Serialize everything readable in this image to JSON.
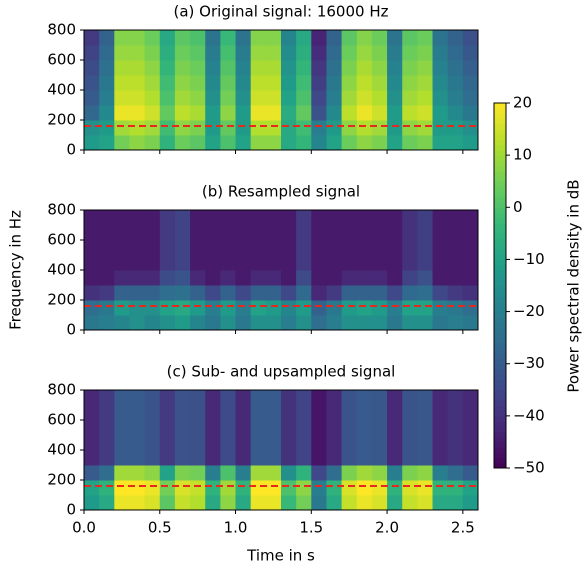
{
  "chart_data": [
    {
      "type": "heatmap",
      "title": "(a) Original signal: 16000 Hz",
      "colormap": "viridis",
      "xlim": [
        0,
        2.6
      ],
      "ylim": [
        0,
        800
      ],
      "yticks": [
        0,
        200,
        400,
        600,
        800
      ],
      "xticks": [
        {
          "value": 0,
          "label": "0.0"
        },
        0.5,
        {
          "value": 1,
          "label": "1.0"
        },
        1.5,
        {
          "value": 2,
          "label": "2.0"
        },
        2.5
      ],
      "show_xticklabels": false,
      "hline": 160,
      "hline_color": "#e8281e",
      "z": [
        [
          -12,
          -10,
          5,
          8,
          6,
          -5,
          4,
          2,
          -10,
          0,
          -10,
          8,
          8,
          -8,
          -4,
          -18,
          -10,
          4,
          8,
          6,
          -10,
          4,
          6,
          -10,
          -10,
          -12
        ],
        [
          -15,
          -12,
          10,
          12,
          10,
          -2,
          8,
          6,
          -12,
          3,
          -12,
          12,
          12,
          -8,
          -2,
          -20,
          -12,
          8,
          12,
          10,
          -12,
          8,
          10,
          -12,
          -12,
          -15
        ],
        [
          -27,
          -17,
          18,
          18,
          15,
          3,
          13,
          11,
          -12,
          8,
          -12,
          18,
          18,
          -7,
          3,
          -32,
          -17,
          13,
          18,
          15,
          -12,
          13,
          15,
          -12,
          -17,
          -22
        ],
        [
          -30,
          -20,
          15,
          15,
          12,
          0,
          10,
          8,
          -15,
          5,
          -15,
          15,
          15,
          -10,
          0,
          -35,
          -20,
          10,
          15,
          12,
          -15,
          10,
          12,
          -15,
          -20,
          -25
        ],
        [
          -32,
          -22,
          13,
          13,
          10,
          -2,
          8,
          6,
          -17,
          3,
          -17,
          13,
          13,
          -12,
          -2,
          -37,
          -22,
          8,
          13,
          10,
          -17,
          8,
          10,
          -17,
          -22,
          -27
        ],
        [
          -34,
          -24,
          11,
          11,
          8,
          -4,
          6,
          4,
          -19,
          1,
          -19,
          11,
          11,
          -14,
          -4,
          -39,
          -24,
          6,
          11,
          8,
          -19,
          6,
          8,
          -19,
          -24,
          -29
        ],
        [
          -36,
          -26,
          9,
          9,
          6,
          -6,
          4,
          2,
          -21,
          -1,
          -21,
          9,
          9,
          -16,
          -6,
          -41,
          -26,
          4,
          9,
          6,
          -21,
          4,
          6,
          -21,
          -26,
          -31
        ],
        [
          -38,
          -28,
          7,
          7,
          4,
          -8,
          2,
          0,
          -23,
          -3,
          -23,
          7,
          7,
          -18,
          -8,
          -43,
          -28,
          2,
          7,
          4,
          -23,
          2,
          4,
          -23,
          -28,
          -33
        ]
      ]
    },
    {
      "type": "heatmap",
      "title": "(b) Resampled signal",
      "colormap": "viridis",
      "xlim": [
        0,
        2.6
      ],
      "ylim": [
        0,
        800
      ],
      "yticks": [
        0,
        200,
        400,
        600,
        800
      ],
      "xticks": [
        {
          "value": 0,
          "label": "0.0"
        },
        0.5,
        {
          "value": 1,
          "label": "1.0"
        },
        1.5,
        {
          "value": 2,
          "label": "2.0"
        },
        2.5
      ],
      "show_xticklabels": false,
      "hline": 160,
      "hline_color": "#e8281e",
      "z": [
        [
          -22,
          -20,
          -18,
          -15,
          -18,
          -15,
          -12,
          -18,
          -22,
          -15,
          -22,
          -15,
          -15,
          -20,
          -15,
          -25,
          -20,
          -15,
          -15,
          -15,
          -22,
          -15,
          -15,
          -22,
          -20,
          -22
        ],
        [
          -25,
          -22,
          -12,
          -15,
          -15,
          -10,
          -8,
          -12,
          -20,
          -12,
          -20,
          -10,
          -12,
          -18,
          -12,
          -28,
          -22,
          -12,
          -10,
          -12,
          -20,
          -10,
          -10,
          -20,
          -22,
          -25
        ],
        [
          -40,
          -38,
          -28,
          -28,
          -28,
          -25,
          -24,
          -28,
          -35,
          -28,
          -35,
          -28,
          -28,
          -35,
          -26,
          -42,
          -38,
          -28,
          -28,
          -28,
          -35,
          -26,
          -25,
          -35,
          -38,
          -40
        ],
        [
          -45,
          -45,
          -42,
          -42,
          -42,
          -34,
          -32,
          -42,
          -45,
          -42,
          -45,
          -42,
          -42,
          -45,
          -34,
          -45,
          -45,
          -42,
          -42,
          -42,
          -45,
          -36,
          -33,
          -45,
          -45,
          -45
        ],
        [
          -45,
          -45,
          -45,
          -45,
          -45,
          -38,
          -36,
          -45,
          -45,
          -45,
          -45,
          -45,
          -45,
          -45,
          -38,
          -45,
          -45,
          -45,
          -45,
          -45,
          -45,
          -40,
          -37,
          -45,
          -45,
          -45
        ],
        [
          -45,
          -45,
          -45,
          -45,
          -45,
          -38,
          -36,
          -45,
          -45,
          -45,
          -45,
          -45,
          -45,
          -45,
          -38,
          -45,
          -45,
          -45,
          -45,
          -45,
          -45,
          -40,
          -37,
          -45,
          -45,
          -45
        ],
        [
          -45,
          -45,
          -45,
          -45,
          -45,
          -38,
          -36,
          -45,
          -45,
          -45,
          -45,
          -45,
          -45,
          -45,
          -38,
          -45,
          -45,
          -45,
          -45,
          -45,
          -45,
          -40,
          -37,
          -45,
          -45,
          -45
        ],
        [
          -45,
          -45,
          -45,
          -45,
          -45,
          -38,
          -36,
          -45,
          -45,
          -45,
          -45,
          -45,
          -45,
          -45,
          -38,
          -45,
          -45,
          -45,
          -45,
          -45,
          -45,
          -40,
          -37,
          -45,
          -45,
          -45
        ]
      ]
    },
    {
      "type": "heatmap",
      "title": "(c) Sub- and upsampled signal",
      "colormap": "viridis",
      "xlim": [
        0,
        2.6
      ],
      "ylim": [
        0,
        800
      ],
      "yticks": [
        0,
        200,
        400,
        600,
        800
      ],
      "xticks": [
        {
          "value": 0,
          "label": "0.0"
        },
        0.5,
        {
          "value": 1,
          "label": "1.0"
        },
        1.5,
        {
          "value": 2,
          "label": "2.0"
        },
        2.5
      ],
      "show_xticklabels": true,
      "hline": 160,
      "hline_color": "#e8281e",
      "z": [
        [
          -12,
          -8,
          18,
          18,
          16,
          2,
          14,
          12,
          -8,
          8,
          -8,
          18,
          18,
          -3,
          5,
          -22,
          -8,
          14,
          18,
          16,
          -8,
          14,
          16,
          -8,
          -8,
          -12
        ],
        [
          -10,
          -5,
          20,
          20,
          18,
          5,
          16,
          14,
          -5,
          10,
          -5,
          20,
          20,
          0,
          8,
          -20,
          -5,
          16,
          20,
          18,
          -5,
          16,
          18,
          -5,
          -5,
          -10
        ],
        [
          -30,
          -25,
          10,
          10,
          8,
          -10,
          6,
          5,
          -20,
          0,
          -20,
          10,
          10,
          -15,
          -5,
          -35,
          -25,
          6,
          10,
          8,
          -20,
          6,
          8,
          -20,
          -25,
          -30
        ],
        [
          -42,
          -38,
          -30,
          -30,
          -32,
          -38,
          -32,
          -33,
          -42,
          -34,
          -42,
          -30,
          -30,
          -40,
          -36,
          -46,
          -42,
          -32,
          -30,
          -31,
          -42,
          -32,
          -31,
          -42,
          -40,
          -42
        ],
        [
          -42,
          -38,
          -30,
          -30,
          -32,
          -38,
          -32,
          -33,
          -42,
          -34,
          -42,
          -30,
          -30,
          -40,
          -36,
          -46,
          -42,
          -32,
          -30,
          -31,
          -42,
          -32,
          -31,
          -42,
          -40,
          -42
        ],
        [
          -42,
          -38,
          -30,
          -30,
          -32,
          -38,
          -32,
          -33,
          -42,
          -34,
          -42,
          -30,
          -30,
          -40,
          -36,
          -46,
          -42,
          -32,
          -30,
          -31,
          -42,
          -32,
          -31,
          -42,
          -40,
          -42
        ],
        [
          -42,
          -38,
          -30,
          -30,
          -32,
          -38,
          -32,
          -33,
          -42,
          -34,
          -42,
          -30,
          -30,
          -40,
          -36,
          -46,
          -42,
          -32,
          -30,
          -31,
          -42,
          -32,
          -31,
          -42,
          -40,
          -42
        ],
        [
          -42,
          -38,
          -30,
          -30,
          -32,
          -38,
          -32,
          -33,
          -42,
          -34,
          -42,
          -30,
          -30,
          -40,
          -36,
          -46,
          -42,
          -32,
          -30,
          -31,
          -42,
          -32,
          -31,
          -42,
          -40,
          -42
        ]
      ]
    }
  ],
  "xlabel": "Time in s",
  "ylabel": "Frequency in Hz",
  "colorbar": {
    "label": "Power spectral density in dB",
    "lim": [
      -50,
      20
    ],
    "ticks": [
      20,
      10,
      0,
      {
        "value": -10,
        "label": "−10"
      },
      {
        "value": -20,
        "label": "−20"
      },
      {
        "value": -30,
        "label": "−30"
      },
      {
        "value": -40,
        "label": "−40"
      },
      {
        "value": -50,
        "label": "−50"
      }
    ]
  }
}
